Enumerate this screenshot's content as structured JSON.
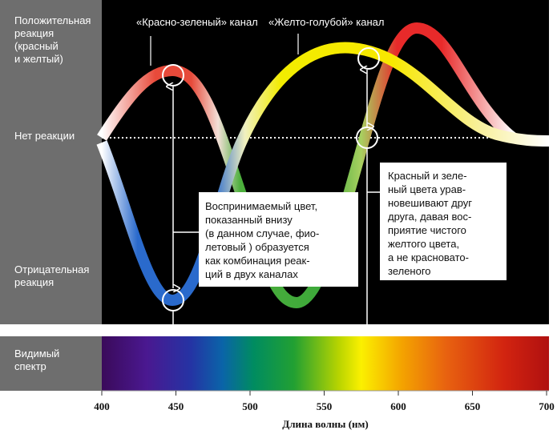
{
  "labels": {
    "positive": [
      "Положительная",
      "реакция",
      "(красный",
      "и желтый)"
    ],
    "none": "Нет реакции",
    "negative": [
      "Отрицательная",
      "реакция"
    ],
    "spectrum": [
      "Видимый",
      "спектр"
    ]
  },
  "channels": [
    "«Красно-зеленый» канал",
    "«Желто-голубой» канал"
  ],
  "callouts": [
    [
      "Воспринимаемый цвет,",
      "показанный внизу",
      "(в данном случае, фио-",
      "летовый ) образуется",
      "как комбинация реак-",
      "ций в двух каналах"
    ],
    [
      "Красный и зеле-",
      "ный цвета урав-",
      "новешивают друг",
      "друга, давая вос-",
      "приятие чистого",
      "желтого цвета,",
      "а не красновато-",
      "зеленого"
    ]
  ],
  "axis": {
    "title": "Длина волны (нм)",
    "ticks": [
      400,
      450,
      500,
      550,
      600,
      650,
      700
    ]
  }
}
